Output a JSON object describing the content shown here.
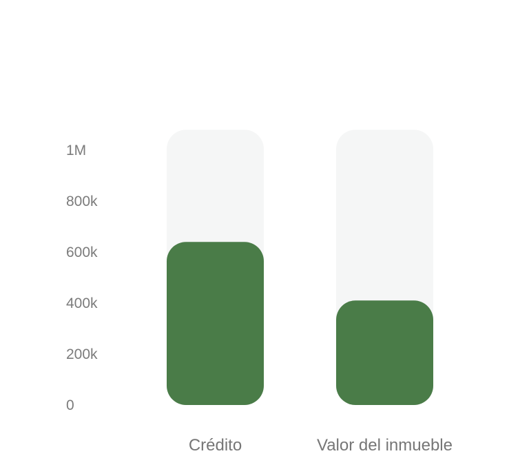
{
  "chart_data": {
    "type": "bar",
    "categories": [
      "Crédito",
      "Valor del inmueble"
    ],
    "values": [
      640000,
      410000
    ],
    "max_values": [
      1080000,
      1080000
    ],
    "ylim": [
      0,
      1000000
    ],
    "yticks": [
      {
        "value": 0,
        "label": "0"
      },
      {
        "value": 200000,
        "label": "200k"
      },
      {
        "value": 400000,
        "label": "400k"
      },
      {
        "value": 600000,
        "label": "600k"
      },
      {
        "value": 800000,
        "label": "800k"
      },
      {
        "value": 1000000,
        "label": "1M"
      }
    ],
    "title": "",
    "xlabel": "",
    "ylabel": "",
    "grid": false,
    "colors": {
      "bar": "#4a7c48",
      "track": "#f5f6f6",
      "tick_text": "#7b7b7b",
      "category_text": "#767676"
    }
  }
}
